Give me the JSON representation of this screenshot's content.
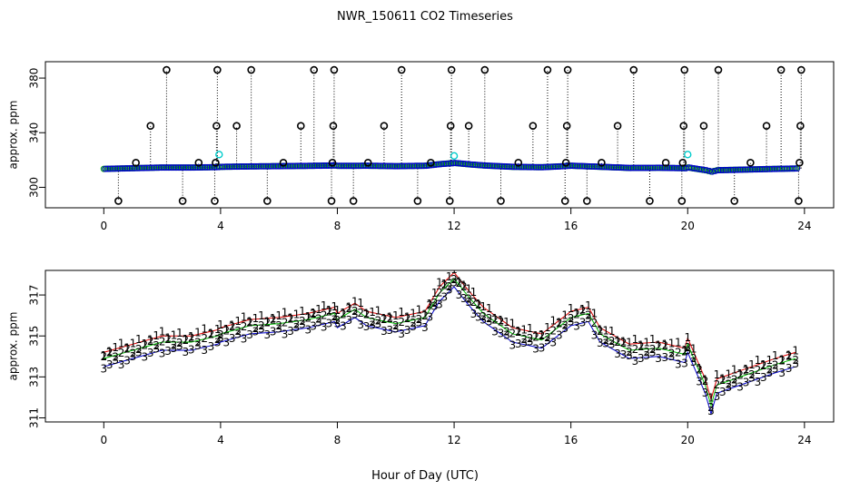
{
  "figure": {
    "title": "NWR_150611  CO2 Timeseries",
    "xlabel": "Hour of Day (UTC)"
  },
  "chart_data": [
    {
      "type": "scatter",
      "ylabel": "approx. ppm",
      "xlim": [
        -2,
        25
      ],
      "ylim": [
        285,
        392
      ],
      "x_ticks": [
        0,
        4,
        8,
        12,
        16,
        20,
        24
      ],
      "y_ticks": [
        300,
        340,
        380
      ],
      "grid": false,
      "series": [
        {
          "color": "#0000cc",
          "style": "main-trace",
          "x": [
            0.0,
            1.0,
            2.0,
            3.0,
            3.9,
            4.0,
            5.0,
            6.0,
            7.0,
            7.9,
            8.0,
            9.0,
            10.0,
            11.0,
            11.5,
            12.0,
            12.5,
            13.0,
            14.0,
            15.0,
            16.0,
            17.0,
            18.0,
            19.0,
            19.9,
            20.0,
            20.6,
            20.8,
            21.0,
            22.0,
            23.0,
            23.7
          ],
          "y": [
            313.5,
            314.0,
            314.5,
            314.5,
            314.8,
            315.0,
            315.3,
            315.5,
            315.7,
            316.0,
            315.7,
            315.8,
            315.5,
            315.8,
            317.0,
            317.8,
            316.8,
            316.0,
            315.0,
            314.7,
            315.8,
            315.0,
            314.2,
            314.3,
            314.0,
            314.5,
            312.5,
            311.5,
            312.5,
            313.0,
            313.5,
            313.8
          ]
        },
        {
          "color": "#000000",
          "style": "outliers",
          "x": [
            0.5,
            1.1,
            1.6,
            2.15,
            2.7,
            3.25,
            3.8,
            3.83,
            3.86,
            3.89,
            4.55,
            5.05,
            5.6,
            6.15,
            6.75,
            7.2,
            7.8,
            7.83,
            7.86,
            7.89,
            8.55,
            9.05,
            9.6,
            10.2,
            10.75,
            11.2,
            11.85,
            11.88,
            11.91,
            12.5,
            13.05,
            13.6,
            14.2,
            14.7,
            15.2,
            15.8,
            15.83,
            15.86,
            15.89,
            16.55,
            17.05,
            17.6,
            18.15,
            18.7,
            19.25,
            19.8,
            19.83,
            19.86,
            19.89,
            20.55,
            21.05,
            21.6,
            22.15,
            22.7,
            23.2,
            23.8,
            23.83,
            23.86,
            23.89
          ],
          "y": [
            290,
            318,
            345,
            386,
            290,
            318,
            290,
            318,
            345,
            386,
            345,
            386,
            290,
            318,
            345,
            386,
            290,
            318,
            345,
            386,
            290,
            318,
            345,
            386,
            290,
            318,
            290,
            345,
            386,
            345,
            386,
            290,
            318,
            345,
            386,
            290,
            318,
            345,
            386,
            290,
            318,
            345,
            386,
            290,
            318,
            290,
            318,
            345,
            386,
            345,
            386,
            290,
            318,
            345,
            386,
            290,
            318,
            345,
            386
          ]
        },
        {
          "color": "#00cccc",
          "style": "flagged",
          "x": [
            3.95,
            12.0,
            20.0
          ],
          "y": [
            324,
            323,
            324
          ]
        }
      ]
    },
    {
      "type": "scatter",
      "ylabel": "approx. ppm",
      "xlim": [
        -2,
        25
      ],
      "ylim": [
        310.8,
        318.2
      ],
      "x_ticks": [
        0,
        4,
        8,
        12,
        16,
        20,
        24
      ],
      "y_ticks": [
        311,
        313,
        315,
        317
      ],
      "grid": false,
      "series": [
        {
          "color": "#dd0000",
          "symbol": "1",
          "x": [
            0.0,
            1.0,
            2.0,
            3.0,
            3.9,
            4.0,
            5.0,
            6.0,
            7.0,
            7.9,
            8.0,
            8.6,
            9.0,
            10.0,
            11.0,
            11.5,
            12.0,
            12.5,
            13.0,
            14.0,
            15.0,
            16.0,
            16.6,
            17.0,
            18.0,
            19.0,
            19.9,
            20.0,
            20.6,
            20.8,
            21.0,
            22.0,
            23.0,
            23.7
          ],
          "y": [
            314.2,
            314.6,
            315.0,
            315.0,
            315.3,
            315.4,
            315.8,
            315.9,
            316.1,
            316.4,
            316.1,
            316.6,
            316.2,
            315.9,
            316.2,
            317.4,
            318.1,
            317.2,
            316.4,
            315.4,
            315.1,
            316.2,
            316.4,
            315.4,
            314.6,
            314.7,
            314.4,
            314.9,
            312.9,
            311.9,
            312.9,
            313.4,
            313.9,
            314.2
          ]
        },
        {
          "color": "#00bb00",
          "symbol": "2",
          "x": [
            0.0,
            1.0,
            2.0,
            3.0,
            3.9,
            4.0,
            5.0,
            6.0,
            7.0,
            7.9,
            8.0,
            8.6,
            9.0,
            10.0,
            11.0,
            11.5,
            12.0,
            12.5,
            13.0,
            14.0,
            15.0,
            16.0,
            16.6,
            17.0,
            18.0,
            19.0,
            19.9,
            20.0,
            20.6,
            20.8,
            21.0,
            22.0,
            23.0,
            23.7
          ],
          "y": [
            313.9,
            314.3,
            314.7,
            314.7,
            315.0,
            315.1,
            315.5,
            315.6,
            315.8,
            316.1,
            315.8,
            316.3,
            315.9,
            315.6,
            315.9,
            317.1,
            317.8,
            316.9,
            316.1,
            315.1,
            314.8,
            315.9,
            316.1,
            315.1,
            314.3,
            314.4,
            314.1,
            314.6,
            312.6,
            311.6,
            312.6,
            313.1,
            313.6,
            313.9
          ]
        },
        {
          "color": "#0000cc",
          "symbol": "3",
          "x": [
            0.0,
            1.0,
            2.0,
            3.0,
            3.9,
            4.0,
            5.0,
            6.0,
            7.0,
            7.9,
            8.0,
            8.6,
            9.0,
            10.0,
            11.0,
            11.5,
            12.0,
            12.5,
            13.0,
            14.0,
            15.0,
            16.0,
            16.6,
            17.0,
            18.0,
            19.0,
            19.9,
            20.0,
            20.6,
            20.8,
            21.0,
            22.0,
            23.0,
            23.7
          ],
          "y": [
            313.5,
            313.9,
            314.3,
            314.3,
            314.6,
            314.7,
            315.1,
            315.2,
            315.4,
            315.7,
            315.4,
            315.9,
            315.5,
            315.2,
            315.5,
            316.7,
            317.4,
            316.5,
            315.7,
            314.7,
            314.4,
            315.5,
            315.7,
            314.7,
            313.9,
            314.0,
            313.7,
            314.2,
            312.2,
            311.2,
            312.2,
            312.7,
            313.2,
            313.5
          ]
        }
      ]
    }
  ]
}
